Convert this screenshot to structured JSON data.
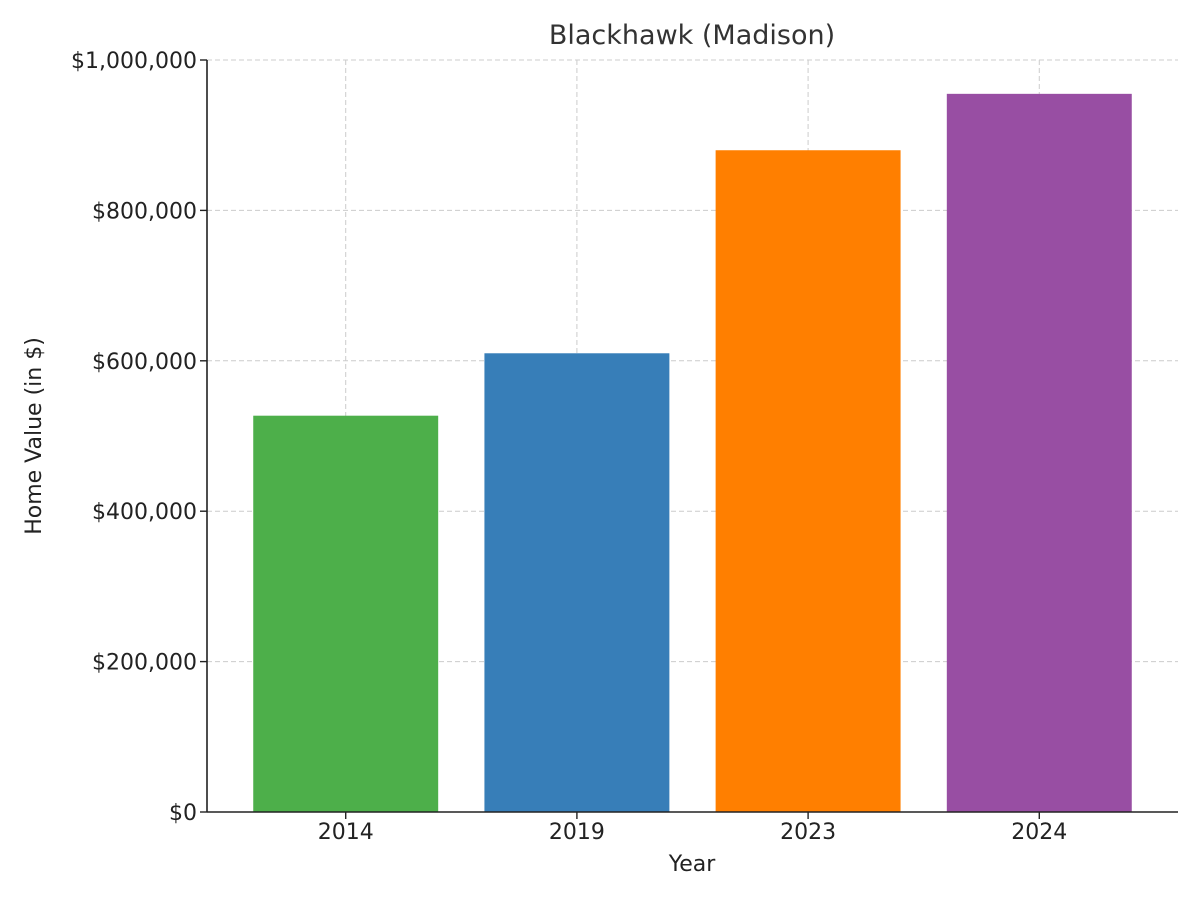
{
  "chart_data": {
    "type": "bar",
    "title": "Blackhawk (Madison)",
    "xlabel": "Year",
    "ylabel": "Home Value (in $)",
    "categories": [
      "2014",
      "2019",
      "2023",
      "2024"
    ],
    "values": [
      527000,
      610000,
      880000,
      955000
    ],
    "colors": [
      "#4daf4a",
      "#377eb8",
      "#ff7f00",
      "#984ea3"
    ],
    "ylim": [
      0,
      1000000
    ],
    "yticks": [
      0,
      200000,
      400000,
      600000,
      800000,
      1000000
    ],
    "ytick_labels": [
      "$0",
      "$200,000",
      "$400,000",
      "$600,000",
      "$800,000",
      "$1,000,000"
    ],
    "grid": true
  }
}
